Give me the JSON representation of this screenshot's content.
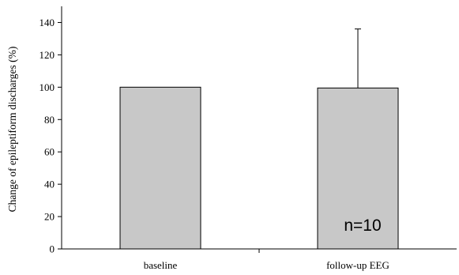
{
  "chart_data": {
    "type": "bar",
    "title": "",
    "xlabel": "",
    "ylabel": "Change of epileptiform discharges (%)",
    "categories": [
      "baseline",
      "follow-up EEG"
    ],
    "values": [
      100,
      99.5
    ],
    "error_upper": [
      0,
      136
    ],
    "ylim": [
      0,
      150
    ],
    "yticks": [
      0,
      20,
      40,
      60,
      80,
      100,
      120,
      140
    ],
    "bar_color": "#c8c8c8",
    "annotation": "n=10",
    "grid": false,
    "legend": "none"
  }
}
